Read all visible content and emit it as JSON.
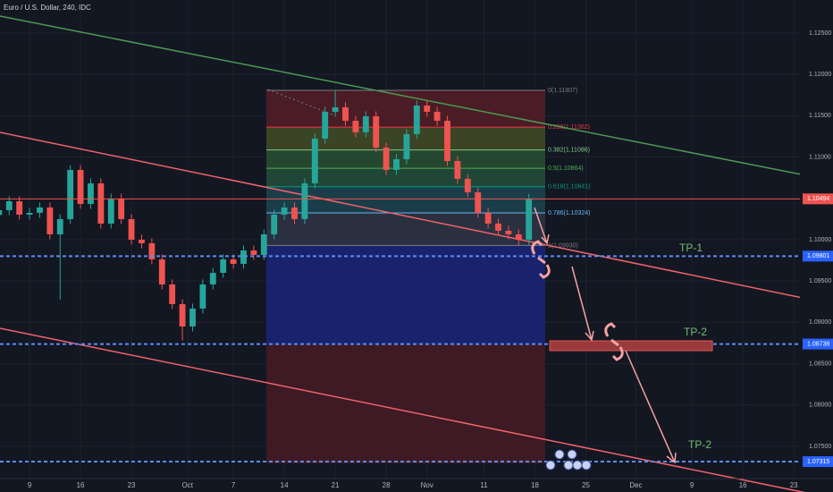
{
  "chart_data": {
    "type": "candlestick",
    "title": "Euro / U.S. Dollar, 240, IDC",
    "up_color": "#26a69a",
    "down_color": "#ef5350",
    "x": [
      -3,
      -2,
      -1,
      0,
      1,
      2,
      3,
      4,
      5,
      6,
      7,
      8,
      9,
      10,
      11,
      12,
      13,
      14,
      15,
      16,
      17,
      18,
      19,
      20,
      21,
      22,
      23,
      24,
      25,
      26,
      27,
      28,
      29,
      30,
      31,
      32,
      33,
      34,
      35,
      36,
      37,
      38,
      39,
      40,
      41,
      42,
      43,
      44,
      45,
      46,
      47,
      48,
      49
    ],
    "open": [
      1.103,
      1.10357,
      1.10465,
      1.10303,
      1.10325,
      1.1039,
      1.10065,
      1.10249,
      1.10844,
      1.10433,
      1.10682,
      1.10195,
      1.10498,
      1.10249,
      1.1,
      1.09957,
      1.09762,
      1.09459,
      1.09221,
      1.0895,
      1.09167,
      1.09459,
      1.09599,
      1.09762,
      1.09708,
      1.0987,
      1.09816,
      1.10065,
      1.10303,
      1.1039,
      1.10249,
      1.10682,
      1.11223,
      1.11548,
      1.11602,
      1.11439,
      1.11299,
      1.11493,
      1.11115,
      1.10844,
      1.10974,
      1.11277,
      1.11623,
      1.11548,
      1.11439,
      1.10952,
      1.10736,
      1.10574,
      1.10325,
      1.10195,
      1.10108,
      1.10065,
      1.1
    ],
    "high": [
      1.10417,
      1.10525,
      1.10525,
      1.10385,
      1.1045,
      1.1045,
      1.10309,
      1.109,
      1.10904,
      1.10742,
      1.10742,
      1.10558,
      1.10558,
      1.10309,
      1.1006,
      1.10017,
      1.09822,
      1.09519,
      1.09281,
      1.09227,
      1.09519,
      1.09659,
      1.09822,
      1.09822,
      1.0993,
      1.0993,
      1.10125,
      1.10363,
      1.1045,
      1.1045,
      1.10742,
      1.11283,
      1.11608,
      1.11807,
      1.11662,
      1.11499,
      1.11553,
      1.11553,
      1.11175,
      1.11034,
      1.11337,
      1.11683,
      1.11683,
      1.11608,
      1.11499,
      1.11012,
      1.10796,
      1.10634,
      1.10385,
      1.10255,
      1.10168,
      1.10125,
      1.10554
    ],
    "low": [
      1.1024,
      1.10297,
      1.10243,
      1.10243,
      1.10265,
      1.10005,
      1.09275,
      1.10189,
      1.10373,
      1.10373,
      1.10135,
      1.10135,
      1.10189,
      1.0994,
      1.09897,
      1.09702,
      1.09399,
      1.09161,
      1.0878,
      1.0889,
      1.09107,
      1.09399,
      1.09539,
      1.09648,
      1.09648,
      1.09756,
      1.09756,
      1.10005,
      1.10243,
      1.10189,
      1.10189,
      1.10622,
      1.11163,
      1.11488,
      1.11379,
      1.11239,
      1.11239,
      1.11055,
      1.10784,
      1.10784,
      1.10914,
      1.11217,
      1.11488,
      1.11379,
      1.10892,
      1.10676,
      1.10514,
      1.10265,
      1.10135,
      1.10048,
      1.10005,
      1.0993,
      1.0994
    ],
    "close": [
      1.10357,
      1.10465,
      1.10303,
      1.10325,
      1.1039,
      1.10065,
      1.10249,
      1.10844,
      1.10433,
      1.10682,
      1.10195,
      1.10498,
      1.10249,
      1.1,
      1.09957,
      1.09762,
      1.09459,
      1.09221,
      1.0895,
      1.09167,
      1.09459,
      1.09599,
      1.09762,
      1.09708,
      1.0987,
      1.09816,
      1.10065,
      1.10303,
      1.1039,
      1.10249,
      1.10682,
      1.11223,
      1.11548,
      1.11602,
      1.11439,
      1.11299,
      1.11493,
      1.11115,
      1.10844,
      1.10974,
      1.11277,
      1.11623,
      1.11548,
      1.11439,
      1.10952,
      1.10736,
      1.10574,
      1.10325,
      1.10195,
      1.10108,
      1.10065,
      1.1,
      1.10494
    ],
    "xlim": [
      -2.9,
      75.6
    ],
    "xticks": [
      {
        "value": 0,
        "label": "9"
      },
      {
        "value": 5,
        "label": "16"
      },
      {
        "value": 10,
        "label": "23"
      },
      {
        "value": 15.5,
        "label": "Oct"
      },
      {
        "value": 20,
        "label": "7"
      },
      {
        "value": 25,
        "label": "14"
      },
      {
        "value": 30,
        "label": "21"
      },
      {
        "value": 35,
        "label": "28"
      },
      {
        "value": 39,
        "label": "Nov"
      },
      {
        "value": 44.6,
        "label": "11"
      },
      {
        "value": 49.6,
        "label": "18"
      },
      {
        "value": 54.6,
        "label": "25"
      },
      {
        "value": 59.5,
        "label": "Dec"
      },
      {
        "value": 65,
        "label": "9"
      },
      {
        "value": 70,
        "label": "16"
      },
      {
        "value": 75,
        "label": "23"
      }
    ],
    "ylim": [
      1.0711,
      1.129
    ],
    "yticks": [
      {
        "value": 1.125,
        "label": "1.12500"
      },
      {
        "value": 1.12,
        "label": "1.12000"
      },
      {
        "value": 1.115,
        "label": "1.11500"
      },
      {
        "value": 1.11,
        "label": "1.11000"
      },
      {
        "value": 1.1,
        "label": "1.10000"
      },
      {
        "value": 1.095,
        "label": "1.09500"
      },
      {
        "value": 1.09,
        "label": "1.09000"
      },
      {
        "value": 1.085,
        "label": "1.08500"
      },
      {
        "value": 1.08,
        "label": "1.08000"
      },
      {
        "value": 1.075,
        "label": "1.07500"
      }
    ],
    "grid": true,
    "price_lines": [
      {
        "value": 1.10494,
        "color": "#ef5350",
        "dashed": false
      },
      {
        "value": 1.09801,
        "color": "#5b8cf5",
        "dashed": true
      },
      {
        "value": 1.08738,
        "color": "#5b8cf5",
        "dashed": true
      },
      {
        "value": 1.07315,
        "color": "#5b8cf5",
        "dashed": true
      }
    ],
    "fib_levels": [
      {
        "value": 1.11807,
        "label": "0(1.11807)",
        "color": "#787b86",
        "fill": "#4a1d26"
      },
      {
        "value": 1.11362,
        "label": "0.236(1.11362)",
        "color": "#f23645",
        "fill": "#3c4426"
      },
      {
        "value": 1.11086,
        "label": "0.382(1.11086)",
        "color": "#81c784",
        "fill": "#26472f"
      },
      {
        "value": 1.10864,
        "label": "0.5(1.10864)",
        "color": "#4caf50",
        "fill": "#1f4636"
      },
      {
        "value": 1.10641,
        "label": "0.618(1.10641)",
        "color": "#089981",
        "fill": "#1b3d4a"
      },
      {
        "value": 1.10324,
        "label": "0.786(1.10324)",
        "color": "#64b5f6",
        "fill": "#2a3040"
      },
      {
        "value": 1.0993,
        "label": "1(1.09930)",
        "color": "#787b86",
        "fill": null
      }
    ],
    "annotations": [
      {
        "text": "TP-1"
      },
      {
        "text": "TP-2"
      },
      {
        "text": "TP-2"
      }
    ]
  }
}
